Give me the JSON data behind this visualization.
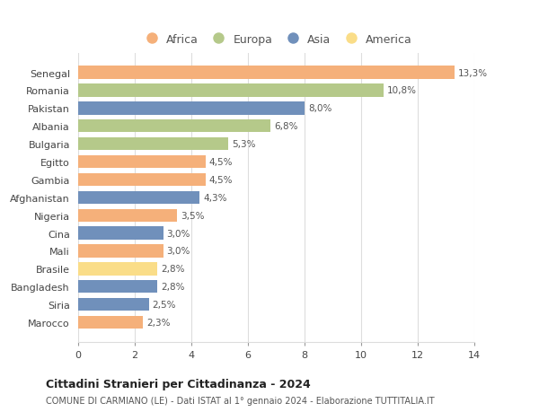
{
  "categories": [
    "Marocco",
    "Siria",
    "Bangladesh",
    "Brasile",
    "Mali",
    "Cina",
    "Nigeria",
    "Afghanistan",
    "Gambia",
    "Egitto",
    "Bulgaria",
    "Albania",
    "Pakistan",
    "Romania",
    "Senegal"
  ],
  "values": [
    2.3,
    2.5,
    2.8,
    2.8,
    3.0,
    3.0,
    3.5,
    4.3,
    4.5,
    4.5,
    5.3,
    6.8,
    8.0,
    10.8,
    13.3
  ],
  "continents": [
    "Africa",
    "Asia",
    "Asia",
    "America",
    "Africa",
    "Asia",
    "Africa",
    "Asia",
    "Africa",
    "Africa",
    "Europa",
    "Europa",
    "Asia",
    "Europa",
    "Africa"
  ],
  "colors": {
    "Africa": "#F5B07A",
    "Europa": "#B5C98A",
    "Asia": "#7090BB",
    "America": "#FADD88"
  },
  "labels": [
    "2,3%",
    "2,5%",
    "2,8%",
    "2,8%",
    "3,0%",
    "3,0%",
    "3,5%",
    "4,3%",
    "4,5%",
    "4,5%",
    "5,3%",
    "6,8%",
    "8,0%",
    "10,8%",
    "13,3%"
  ],
  "title1": "Cittadini Stranieri per Cittadinanza - 2024",
  "title2": "COMUNE DI CARMIANO (LE) - Dati ISTAT al 1° gennaio 2024 - Elaborazione TUTTITALIA.IT",
  "xlim": [
    0,
    14
  ],
  "xticks": [
    0,
    2,
    4,
    6,
    8,
    10,
    12,
    14
  ],
  "grid_color": "#dddddd",
  "bg_color": "#ffffff",
  "bar_height": 0.72,
  "legend_order": [
    "Africa",
    "Europa",
    "Asia",
    "America"
  ]
}
